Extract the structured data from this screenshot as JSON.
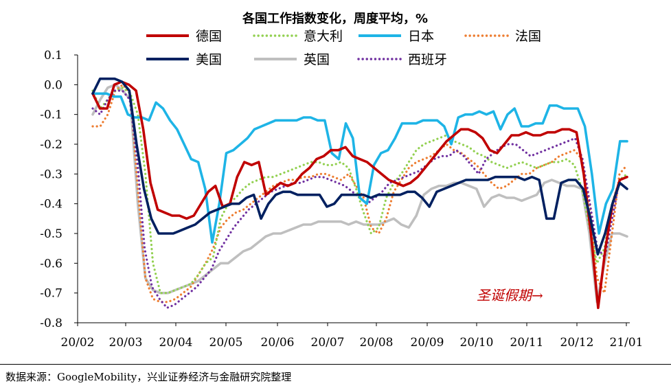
{
  "chart_data": {
    "type": "line",
    "title": "各国工作指数变化，周度平均，%",
    "xlabel": "",
    "ylabel": "",
    "ylim": [
      -0.8,
      0.1
    ],
    "yticks": [
      "0.1",
      "0.0",
      "-0.1",
      "-0.2",
      "-0.3",
      "-0.4",
      "-0.5",
      "-0.6",
      "-0.7",
      "-0.8"
    ],
    "xticks": [
      "20/02",
      "20/03",
      "20/04",
      "20/05",
      "20/06",
      "20/07",
      "20/08",
      "20/09",
      "20/10",
      "20/11",
      "20/12",
      "21/01"
    ],
    "grid": false,
    "legend": "top",
    "annotation": "圣诞假期→",
    "series": [
      {
        "name": "德国",
        "style": "solid",
        "color": "#C00000",
        "values": [
          -0.03,
          -0.08,
          -0.08,
          0.0,
          0.01,
          0.0,
          -0.02,
          -0.15,
          -0.33,
          -0.42,
          -0.43,
          -0.44,
          -0.44,
          -0.45,
          -0.44,
          -0.4,
          -0.36,
          -0.34,
          -0.41,
          -0.4,
          -0.31,
          -0.26,
          -0.27,
          -0.26,
          -0.37,
          -0.35,
          -0.33,
          -0.34,
          -0.33,
          -0.3,
          -0.28,
          -0.25,
          -0.24,
          -0.22,
          -0.22,
          -0.21,
          -0.24,
          -0.25,
          -0.26,
          -0.28,
          -0.3,
          -0.32,
          -0.33,
          -0.34,
          -0.33,
          -0.31,
          -0.28,
          -0.25,
          -0.22,
          -0.19,
          -0.17,
          -0.15,
          -0.15,
          -0.16,
          -0.18,
          -0.22,
          -0.23,
          -0.2,
          -0.17,
          -0.17,
          -0.16,
          -0.17,
          -0.17,
          -0.16,
          -0.16,
          -0.15,
          -0.15,
          -0.16,
          -0.3,
          -0.5,
          -0.75,
          -0.55,
          -0.4,
          -0.32,
          -0.31
        ]
      },
      {
        "name": "意大利",
        "style": "dotted",
        "color": "#92D050",
        "values": [
          -0.02,
          -0.08,
          -0.05,
          -0.02,
          -0.01,
          -0.03,
          -0.1,
          -0.3,
          -0.6,
          -0.7,
          -0.7,
          -0.69,
          -0.68,
          -0.67,
          -0.64,
          -0.6,
          -0.58,
          -0.45,
          -0.4,
          -0.38,
          -0.35,
          -0.33,
          -0.32,
          -0.31,
          -0.31,
          -0.3,
          -0.29,
          -0.28,
          -0.27,
          -0.26,
          -0.26,
          -0.27,
          -0.27,
          -0.26,
          -0.28,
          -0.35,
          -0.43,
          -0.5,
          -0.48,
          -0.38,
          -0.33,
          -0.3,
          -0.26,
          -0.22,
          -0.2,
          -0.19,
          -0.18,
          -0.17,
          -0.19,
          -0.2,
          -0.21,
          -0.23,
          -0.24,
          -0.26,
          -0.27,
          -0.28,
          -0.27,
          -0.26,
          -0.27,
          -0.28,
          -0.27,
          -0.26,
          -0.26,
          -0.25,
          -0.27,
          -0.35,
          -0.48,
          -0.6,
          -0.55,
          -0.4,
          -0.32,
          -0.3
        ]
      },
      {
        "name": "日本",
        "style": "solid",
        "color": "#1EB4E6",
        "values": [
          -0.03,
          -0.03,
          -0.03,
          -0.04,
          -0.04,
          -0.1,
          -0.11,
          -0.11,
          -0.12,
          -0.06,
          -0.08,
          -0.12,
          -0.15,
          -0.2,
          -0.25,
          -0.26,
          -0.35,
          -0.53,
          -0.4,
          -0.23,
          -0.22,
          -0.2,
          -0.18,
          -0.15,
          -0.14,
          -0.13,
          -0.12,
          -0.12,
          -0.12,
          -0.12,
          -0.11,
          -0.11,
          -0.12,
          -0.12,
          -0.23,
          -0.25,
          -0.13,
          -0.18,
          -0.38,
          -0.4,
          -0.27,
          -0.23,
          -0.22,
          -0.18,
          -0.13,
          -0.13,
          -0.13,
          -0.12,
          -0.12,
          -0.12,
          -0.14,
          -0.2,
          -0.11,
          -0.1,
          -0.1,
          -0.09,
          -0.1,
          -0.09,
          -0.15,
          -0.1,
          -0.08,
          -0.14,
          -0.14,
          -0.13,
          -0.13,
          -0.07,
          -0.07,
          -0.08,
          -0.08,
          -0.08,
          -0.14,
          -0.3,
          -0.5,
          -0.4,
          -0.35,
          -0.19,
          -0.19
        ]
      },
      {
        "name": "法国",
        "style": "dotted",
        "color": "#ED7D31",
        "values": [
          -0.14,
          -0.14,
          -0.1,
          -0.02,
          0.0,
          -0.03,
          -0.35,
          -0.65,
          -0.72,
          -0.73,
          -0.73,
          -0.72,
          -0.7,
          -0.68,
          -0.64,
          -0.6,
          -0.55,
          -0.48,
          -0.45,
          -0.43,
          -0.42,
          -0.4,
          -0.38,
          -0.36,
          -0.34,
          -0.33,
          -0.32,
          -0.32,
          -0.31,
          -0.31,
          -0.3,
          -0.3,
          -0.31,
          -0.32,
          -0.3,
          -0.34,
          -0.38,
          -0.48,
          -0.5,
          -0.45,
          -0.36,
          -0.32,
          -0.28,
          -0.26,
          -0.25,
          -0.24,
          -0.22,
          -0.2,
          -0.22,
          -0.23,
          -0.25,
          -0.27,
          -0.3,
          -0.33,
          -0.35,
          -0.34,
          -0.32,
          -0.3,
          -0.3,
          -0.28,
          -0.27,
          -0.26,
          -0.24,
          -0.23,
          -0.22,
          -0.25,
          -0.4,
          -0.65,
          -0.7,
          -0.5,
          -0.3,
          -0.27
        ]
      },
      {
        "name": "美国",
        "style": "solid",
        "color": "#002060",
        "values": [
          -0.03,
          0.02,
          0.02,
          0.02,
          0.01,
          -0.02,
          -0.2,
          -0.35,
          -0.45,
          -0.5,
          -0.5,
          -0.5,
          -0.49,
          -0.48,
          -0.47,
          -0.45,
          -0.43,
          -0.42,
          -0.41,
          -0.4,
          -0.4,
          -0.38,
          -0.37,
          -0.45,
          -0.4,
          -0.37,
          -0.36,
          -0.36,
          -0.37,
          -0.37,
          -0.37,
          -0.37,
          -0.41,
          -0.4,
          -0.37,
          -0.37,
          -0.37,
          -0.37,
          -0.38,
          -0.37,
          -0.37,
          -0.37,
          -0.37,
          -0.36,
          -0.36,
          -0.38,
          -0.41,
          -0.36,
          -0.35,
          -0.34,
          -0.33,
          -0.32,
          -0.32,
          -0.32,
          -0.32,
          -0.31,
          -0.31,
          -0.31,
          -0.31,
          -0.32,
          -0.31,
          -0.32,
          -0.45,
          -0.45,
          -0.33,
          -0.32,
          -0.32,
          -0.35,
          -0.45,
          -0.57,
          -0.5,
          -0.4,
          -0.33,
          -0.35
        ]
      },
      {
        "name": "英国",
        "style": "solid",
        "color": "#BFBFBF",
        "values": [
          -0.1,
          -0.05,
          -0.01,
          0.0,
          -0.02,
          -0.05,
          -0.4,
          -0.65,
          -0.69,
          -0.7,
          -0.7,
          -0.69,
          -0.68,
          -0.67,
          -0.66,
          -0.64,
          -0.62,
          -0.6,
          -0.6,
          -0.58,
          -0.56,
          -0.55,
          -0.53,
          -0.51,
          -0.5,
          -0.5,
          -0.49,
          -0.48,
          -0.47,
          -0.47,
          -0.46,
          -0.46,
          -0.46,
          -0.46,
          -0.47,
          -0.46,
          -0.47,
          -0.47,
          -0.47,
          -0.46,
          -0.45,
          -0.47,
          -0.48,
          -0.44,
          -0.37,
          -0.35,
          -0.34,
          -0.34,
          -0.33,
          -0.33,
          -0.34,
          -0.35,
          -0.41,
          -0.38,
          -0.37,
          -0.38,
          -0.38,
          -0.39,
          -0.38,
          -0.37,
          -0.33,
          -0.32,
          -0.33,
          -0.34,
          -0.34,
          -0.35,
          -0.5,
          -0.73,
          -0.6,
          -0.5,
          -0.5,
          -0.51
        ]
      },
      {
        "name": "西班牙",
        "style": "dotted",
        "color": "#7030A0",
        "values": [
          -0.08,
          -0.1,
          -0.05,
          -0.02,
          -0.02,
          -0.05,
          -0.25,
          -0.55,
          -0.68,
          -0.72,
          -0.75,
          -0.74,
          -0.72,
          -0.7,
          -0.68,
          -0.65,
          -0.62,
          -0.56,
          -0.52,
          -0.48,
          -0.45,
          -0.42,
          -0.4,
          -0.38,
          -0.36,
          -0.35,
          -0.34,
          -0.33,
          -0.33,
          -0.32,
          -0.31,
          -0.31,
          -0.32,
          -0.33,
          -0.34,
          -0.36,
          -0.38,
          -0.4,
          -0.38,
          -0.36,
          -0.33,
          -0.32,
          -0.31,
          -0.3,
          -0.29,
          -0.27,
          -0.25,
          -0.24,
          -0.24,
          -0.22,
          -0.24,
          -0.27,
          -0.3,
          -0.25,
          -0.23,
          -0.21,
          -0.2,
          -0.2,
          -0.22,
          -0.24,
          -0.23,
          -0.22,
          -0.21,
          -0.2,
          -0.19,
          -0.18,
          -0.25,
          -0.4,
          -0.55,
          -0.58,
          -0.45,
          -0.32,
          -0.31
        ]
      }
    ]
  },
  "source": "数据来源：GoogleMobility，兴业证券经济与金融研究院整理"
}
